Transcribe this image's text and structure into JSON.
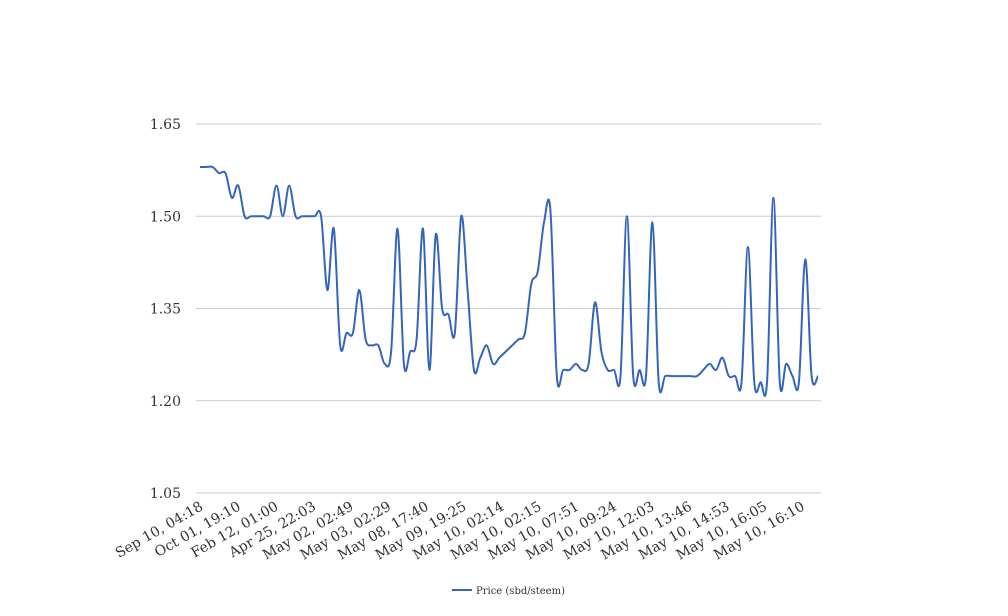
{
  "chart_data": {
    "type": "line",
    "title": "",
    "xlabel": "",
    "ylabel": "",
    "ylim": [
      1.05,
      1.65
    ],
    "yticks": [
      "1.05",
      "1.20",
      "1.35",
      "1.50",
      "1.65"
    ],
    "grid": true,
    "legend_position": "bottom",
    "x_tick_labels": [
      "Sep 10, 04:18",
      "Oct 01, 19:10",
      "Feb 12, 01:00",
      "Apr 25, 22:03",
      "May 02, 02:49",
      "May 03, 02:29",
      "May 08, 17:40",
      "May 09, 19:25",
      "May 10, 02:14",
      "May 10, 02:15",
      "May 10, 07:51",
      "May 10, 09:24",
      "May 10, 12:03",
      "May 10, 13:46",
      "May 10, 14:53",
      "May 10, 16:05",
      "May 10, 16:10"
    ],
    "series": [
      {
        "name": "Price (sbd/steem)",
        "color": "#3366bb",
        "values": [
          1.58,
          1.58,
          1.58,
          1.57,
          1.57,
          1.53,
          1.55,
          1.5,
          1.5,
          1.5,
          1.5,
          1.5,
          1.55,
          1.5,
          1.55,
          1.5,
          1.5,
          1.5,
          1.5,
          1.5,
          1.38,
          1.48,
          1.29,
          1.31,
          1.31,
          1.38,
          1.3,
          1.29,
          1.29,
          1.26,
          1.28,
          1.48,
          1.26,
          1.28,
          1.3,
          1.48,
          1.25,
          1.47,
          1.35,
          1.34,
          1.31,
          1.5,
          1.38,
          1.25,
          1.27,
          1.29,
          1.26,
          1.27,
          1.28,
          1.29,
          1.3,
          1.31,
          1.39,
          1.41,
          1.49,
          1.51,
          1.24,
          1.25,
          1.25,
          1.26,
          1.25,
          1.26,
          1.36,
          1.28,
          1.25,
          1.25,
          1.24,
          1.5,
          1.24,
          1.25,
          1.24,
          1.49,
          1.23,
          1.24,
          1.24,
          1.24,
          1.24,
          1.24,
          1.24,
          1.25,
          1.26,
          1.25,
          1.27,
          1.24,
          1.24,
          1.23,
          1.45,
          1.23,
          1.23,
          1.23,
          1.53,
          1.23,
          1.26,
          1.24,
          1.23,
          1.43,
          1.24,
          1.24
        ]
      }
    ]
  }
}
